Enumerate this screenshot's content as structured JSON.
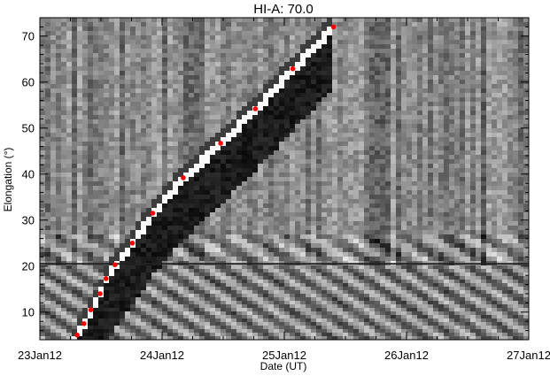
{
  "chart_data": {
    "type": "scatter",
    "title": "HI-A: 70.0",
    "xlabel": "Date (UT)",
    "ylabel": "Elongation (°)",
    "x_ticks": [
      "23Jan12",
      "24Jan12",
      "25Jan12",
      "26Jan12",
      "27Jan12"
    ],
    "y_ticks": [
      "10",
      "20",
      "30",
      "40",
      "50",
      "60",
      "70"
    ],
    "xlim": [
      "2012-01-23T00:00",
      "2012-01-27T00:00"
    ],
    "ylim": [
      4,
      74
    ],
    "instrument_boundary_elongation": 20.5,
    "background": "J-map of running-difference brightness (greyscale)",
    "series": [
      {
        "color": "#ff0000",
        "points": [
          {
            "x": "2012-01-23T07:20",
            "y": 5.0
          },
          {
            "x": "2012-01-23T08:40",
            "y": 7.5
          },
          {
            "x": "2012-01-23T10:00",
            "y": 10.5
          },
          {
            "x": "2012-01-23T11:50",
            "y": 14.0
          },
          {
            "x": "2012-01-23T13:00",
            "y": 17.3
          },
          {
            "x": "2012-01-23T14:45",
            "y": 20.3
          },
          {
            "x": "2012-01-23T18:10",
            "y": 25.0
          },
          {
            "x": "2012-01-23T22:10",
            "y": 31.5
          },
          {
            "x": "2012-01-24T04:10",
            "y": 39.2
          },
          {
            "x": "2012-01-24T11:30",
            "y": 46.7
          },
          {
            "x": "2012-01-24T18:20",
            "y": 54.2
          },
          {
            "x": "2012-01-25T01:40",
            "y": 62.9
          },
          {
            "x": "2012-01-25T09:40",
            "y": 72.0
          }
        ]
      }
    ]
  }
}
